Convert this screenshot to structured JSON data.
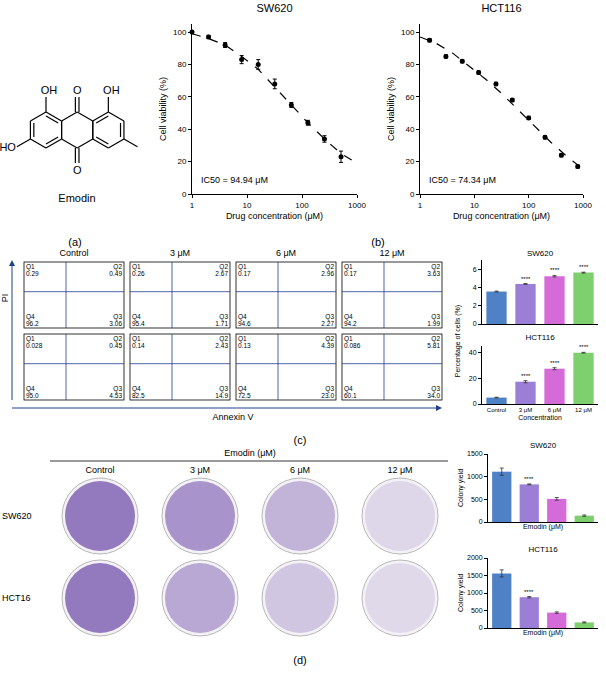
{
  "panel_labels": [
    "(a)",
    "(b)",
    "(c)",
    "(d)"
  ],
  "structure": {
    "name": "Emodin",
    "atoms": {
      "top_left": "OH",
      "top_center": "O",
      "top_right": "OH",
      "bottom_center": "O",
      "bottom_left": "HO"
    }
  },
  "chart_data": [
    {
      "type": "scatter",
      "title": "SW620",
      "x_label": "Drug concentration (μM)",
      "y_label": "Cell viability (%)",
      "log": "x",
      "xlim": [
        1,
        1000
      ],
      "xticks": [
        1,
        10,
        100,
        1000
      ],
      "ylim": [
        0,
        105
      ],
      "yticks": [
        0,
        20,
        40,
        60,
        80,
        100
      ],
      "grid": false,
      "color": "#000000",
      "annotations": [
        "IC50 = 94.94 μM"
      ],
      "series": [
        {
          "type": "scatter",
          "marker": "circle",
          "x": [
            1,
            2,
            4,
            8,
            16,
            32,
            64,
            128,
            256,
            512
          ],
          "values": [
            100,
            97,
            92,
            83,
            80,
            68,
            55,
            44,
            34,
            23
          ],
          "error": [
            1,
            1,
            1.5,
            2.5,
            3,
            3,
            1.5,
            1.5,
            2,
            3.5
          ]
        },
        {
          "type": "line",
          "line_style": "dashed",
          "x": [
            1,
            2,
            4,
            8,
            16,
            32,
            64,
            128,
            256,
            512,
            800
          ],
          "values": [
            99,
            96,
            92,
            85,
            77,
            66,
            55,
            44,
            34,
            25,
            21
          ]
        }
      ]
    },
    {
      "type": "scatter",
      "title": "HCT116",
      "x_label": "Drug concentration (μM)",
      "y_label": "Cell viability (%)",
      "log": "x",
      "xlim": [
        1,
        1000
      ],
      "xticks": [
        1,
        10,
        100,
        1000
      ],
      "ylim": [
        0,
        105
      ],
      "yticks": [
        0,
        20,
        40,
        60,
        80,
        100
      ],
      "grid": false,
      "color": "#000000",
      "annotations": [
        "IC50 = 74.34 μM"
      ],
      "series": [
        {
          "type": "scatter",
          "marker": "circle",
          "x": [
            1.5,
            3,
            6,
            12,
            25,
            50,
            100,
            200,
            400,
            800
          ],
          "values": [
            95,
            85,
            82,
            75,
            68,
            58,
            47,
            35,
            24,
            17
          ],
          "error": [
            1,
            1,
            1,
            1,
            1,
            1,
            1,
            1,
            1,
            1
          ]
        },
        {
          "type": "line",
          "line_style": "dashed",
          "x": [
            1,
            2,
            4,
            8,
            16,
            32,
            64,
            128,
            256,
            512,
            800
          ],
          "values": [
            97,
            93,
            87,
            79,
            71,
            62,
            52,
            42,
            32,
            23,
            18
          ]
        }
      ]
    },
    {
      "type": "bar",
      "title": "SW620",
      "categories": [
        null,
        null,
        null,
        null
      ],
      "tick_labels": "y",
      "values": [
        3.55,
        4.38,
        5.23,
        5.62
      ],
      "error": [
        0.05,
        0.05,
        0.08,
        0.05
      ],
      "colors": [
        "#4f81c7",
        "#9b7ed6",
        "#d56bd8",
        "#7ecf6e"
      ],
      "ylim": [
        0,
        7
      ],
      "yticks": [
        0,
        2,
        4,
        6
      ],
      "grid": false,
      "annotations": [
        {
          "index": 1,
          "text": "****"
        },
        {
          "index": 2,
          "text": "****"
        },
        {
          "index": 3,
          "text": "****"
        }
      ]
    },
    {
      "type": "bar",
      "title": "HCT116",
      "x_label": "Concentration",
      "categories": [
        "Control",
        "3 μM",
        "6 μM",
        "12 μM"
      ],
      "values": [
        4.98,
        17.3,
        27.4,
        39.8
      ],
      "error": [
        0.3,
        0.8,
        0.8,
        0.3
      ],
      "colors": [
        "#4f81c7",
        "#9b7ed6",
        "#d56bd8",
        "#7ecf6e"
      ],
      "ylim": [
        0,
        45
      ],
      "yticks": [
        0,
        20,
        40
      ],
      "grid": false,
      "annotations": [
        {
          "index": 1,
          "text": "****"
        },
        {
          "index": 2,
          "text": "****"
        },
        {
          "index": 3,
          "text": "****"
        }
      ]
    },
    {
      "type": "bar",
      "title": "SW620",
      "x_label": "Emodin (μM)",
      "y_label": "Colony yield",
      "categories": [
        null,
        null,
        null,
        null
      ],
      "tick_labels": "y",
      "values": [
        1110,
        830,
        510,
        140
      ],
      "error": [
        80,
        10,
        30,
        15
      ],
      "colors": [
        "#4f81c7",
        "#9b7ed6",
        "#d56bd8",
        "#7ecf6e"
      ],
      "ylim": [
        0,
        1500
      ],
      "yticks": [
        0,
        500,
        1000,
        1500
      ],
      "grid": false,
      "annotations": [
        {
          "index": 1,
          "text": "****"
        }
      ]
    },
    {
      "type": "bar",
      "title": "HCT116",
      "x_label": "Emodin (μM)",
      "y_label": "Colony yield",
      "categories": [
        null,
        null,
        null,
        null
      ],
      "tick_labels": "y",
      "values": [
        1560,
        880,
        440,
        160
      ],
      "error": [
        100,
        20,
        20,
        15
      ],
      "colors": [
        "#4f81c7",
        "#9b7ed6",
        "#d56bd8",
        "#7ecf6e"
      ],
      "ylim": [
        0,
        2000
      ],
      "yticks": [
        0,
        500,
        1000,
        1500,
        2000
      ],
      "grid": false,
      "annotations": [
        {
          "index": 1,
          "text": "****"
        }
      ]
    }
  ],
  "flow_cytometry": {
    "x_label": "Annexin V",
    "y_label": "PI",
    "columns": [
      "Control",
      "3 μM",
      "6 μM",
      "12 μM"
    ],
    "bar_y_label": "Percentage of cells (%)",
    "rows": [
      [
        {
          "Q1": "0.29",
          "Q2": "0.49",
          "Q3": "3.06",
          "Q4": "96.2"
        },
        {
          "Q1": "0.26",
          "Q2": "2.67",
          "Q3": "1.71",
          "Q4": "95.4"
        },
        {
          "Q1": "0.17",
          "Q2": "2.96",
          "Q3": "2.27",
          "Q4": "94.6"
        },
        {
          "Q1": "0.17",
          "Q2": "3.63",
          "Q3": "1.99",
          "Q4": "94.2"
        }
      ],
      [
        {
          "Q1": "0.028",
          "Q2": "0.45",
          "Q3": "4.53",
          "Q4": "95.0"
        },
        {
          "Q1": "0.14",
          "Q2": "2.43",
          "Q3": "14.9",
          "Q4": "82.5"
        },
        {
          "Q1": "0.13",
          "Q2": "4.39",
          "Q3": "23.0",
          "Q4": "72.5"
        },
        {
          "Q1": "0.086",
          "Q2": "5.81",
          "Q3": "34.0",
          "Q4": "60.1"
        }
      ]
    ]
  },
  "colony_assay": {
    "title": "Emodin (μM)",
    "columns": [
      "Control",
      "3 μM",
      "6 μM",
      "12 μM"
    ],
    "rows": [
      "SW620",
      "HCT16"
    ]
  }
}
